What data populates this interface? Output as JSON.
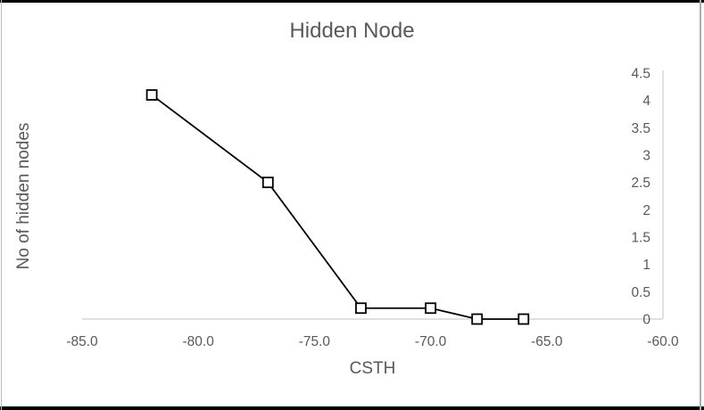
{
  "frame": {
    "background": "#ffffff",
    "top_bottom_border_color": "#000000",
    "side_border_color": "#ababab"
  },
  "chart_data": {
    "type": "line",
    "title": "Hidden Node",
    "xlabel": "CSTH",
    "ylabel": "No of hidden nodes",
    "series": [
      {
        "name": "Hidden Node",
        "x": [
          -82,
          -77,
          -73,
          -70,
          -68,
          -66
        ],
        "y": [
          4.1,
          2.5,
          0.2,
          0.2,
          0,
          0
        ]
      }
    ],
    "xlim": [
      -85,
      -60
    ],
    "ylim": [
      0,
      4.5
    ],
    "x_ticks": {
      "values": [
        -85,
        -80,
        -75,
        -70,
        -65,
        -60
      ],
      "labels": [
        "-85.0",
        "-80.0",
        "-75.0",
        "-70.0",
        "-65.0",
        "-60.0"
      ]
    },
    "y_ticks": {
      "values": [
        0,
        0.5,
        1,
        1.5,
        2,
        2.5,
        3,
        3.5,
        4,
        4.5
      ],
      "labels": [
        "0",
        "0.5",
        "1",
        "1.5",
        "2",
        "2.5",
        "3",
        "3.5",
        "4",
        "4.5"
      ]
    },
    "y_axis_position": "right",
    "grid": false,
    "legend": false,
    "marker": "open-square",
    "colors": {
      "line": "#000000",
      "marker_fill": "#ffffff",
      "marker_border": "#000000",
      "axis_line": "#d6d6d6",
      "text": "#595959"
    }
  }
}
